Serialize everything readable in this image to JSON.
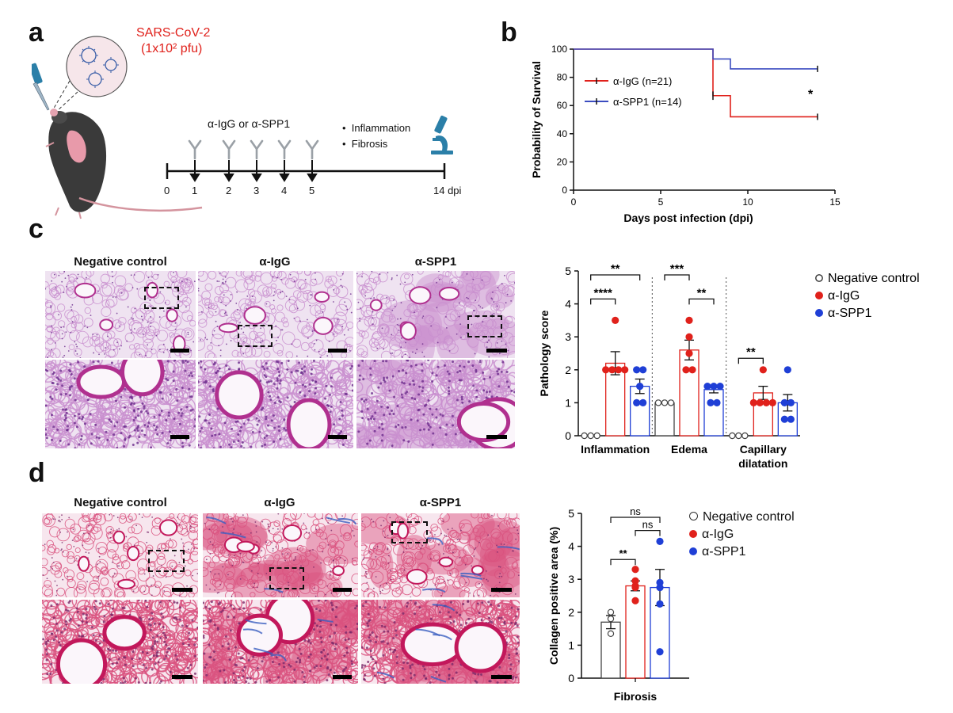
{
  "panels": {
    "a": "a",
    "b": "b",
    "c": "c",
    "d": "d"
  },
  "panel_a": {
    "virus_name": "SARS-CoV-2",
    "virus_dose": "(1x10² pfu)",
    "treatment_label": "α-IgG or α-SPP1",
    "readouts": [
      "Inflammation",
      "Fibrosis"
    ],
    "timeline_ticks": [
      "0",
      "1",
      "2",
      "3",
      "4",
      "5",
      "14 dpi"
    ],
    "colors": {
      "virus_text": "#e0211b",
      "antibody": "#9aa0a6",
      "mouse": "#3a3a3a",
      "lung": "#e89aaa",
      "microscope": "#2b7fa8"
    }
  },
  "histology": {
    "c_headers": [
      "Negative control",
      "α-IgG",
      "α-SPP1"
    ],
    "d_headers": [
      "Negative control",
      "α-IgG",
      "α-SPP1"
    ],
    "colors": {
      "he_bg": "#efe3f1",
      "he_tissue": "#c98fcf",
      "he_nuclei": "#6b2c8c",
      "mt_bg": "#f7e6ee",
      "mt_tissue": "#d9527f",
      "mt_collagen": "#3b5fc0"
    }
  },
  "chart_data": [
    {
      "id": "b",
      "type": "line",
      "subtype": "kaplan-meier",
      "xlabel": "Days post infection (dpi)",
      "ylabel": "Probability of Survival",
      "xlim": [
        0,
        15
      ],
      "ylim": [
        0,
        100
      ],
      "xticks": [
        0,
        5,
        10,
        15
      ],
      "yticks": [
        0,
        20,
        40,
        60,
        80,
        100
      ],
      "series": [
        {
          "name": "α-IgG (n=21)",
          "color": "#e0211b",
          "x": [
            0,
            8,
            8,
            9,
            9,
            14
          ],
          "y": [
            100,
            100,
            67,
            67,
            52,
            52
          ]
        },
        {
          "name": "α-SPP1 (n=14)",
          "color": "#3b4cc0",
          "x": [
            0,
            8,
            8,
            9,
            9,
            14
          ],
          "y": [
            100,
            100,
            93,
            93,
            86,
            86
          ]
        }
      ],
      "annotation": "*",
      "legend_position": "middle-left"
    },
    {
      "id": "c",
      "type": "bar",
      "ylabel": "Pathology score",
      "ylim": [
        0,
        5
      ],
      "yticks": [
        0,
        1,
        2,
        3,
        4,
        5
      ],
      "categories": [
        "Inflammation",
        "Edema",
        "Capillary dilatation"
      ],
      "series": [
        {
          "name": "Negative control",
          "color": "#444444",
          "values": [
            0,
            1,
            0
          ],
          "errors": [
            0,
            0,
            0
          ],
          "points": [
            [
              0,
              0,
              0
            ],
            [
              1,
              1,
              1
            ],
            [
              0,
              0,
              0
            ]
          ]
        },
        {
          "name": "α-IgG",
          "color": "#e0211b",
          "values": [
            2.2,
            2.6,
            1.3
          ],
          "errors": [
            0.35,
            0.3,
            0.2
          ],
          "points": [
            [
              3.5,
              2,
              2,
              2,
              2
            ],
            [
              3.5,
              3,
              2,
              2,
              2.5
            ],
            [
              2,
              1,
              1,
              1,
              1
            ]
          ]
        },
        {
          "name": "α-SPP1",
          "color": "#1f3fd6",
          "values": [
            1.5,
            1.4,
            1.0
          ],
          "errors": [
            0.22,
            0.1,
            0.25
          ],
          "points": [
            [
              2,
              2,
              1.5,
              1,
              1
            ],
            [
              1.5,
              1.5,
              1.5,
              1,
              1
            ],
            [
              2,
              1,
              1,
              0.5,
              0.5
            ]
          ]
        }
      ],
      "significance": [
        "**",
        "****",
        "***",
        "**",
        "**"
      ],
      "legend_position": "top-right"
    },
    {
      "id": "d",
      "type": "bar",
      "xlabel": "Fibrosis",
      "ylabel": "Collagen positive area (%)",
      "ylim": [
        0,
        5
      ],
      "yticks": [
        0,
        1,
        2,
        3,
        4,
        5
      ],
      "categories": [
        "Fibrosis"
      ],
      "series": [
        {
          "name": "Negative control",
          "color": "#444444",
          "values": [
            1.7
          ],
          "errors": [
            0.2
          ],
          "points": [
            [
              2.0,
              1.8,
              1.35
            ]
          ]
        },
        {
          "name": "α-IgG",
          "color": "#e0211b",
          "values": [
            2.8
          ],
          "errors": [
            0.15
          ],
          "points": [
            [
              3.3,
              2.95,
              2.8,
              2.75,
              2.35
            ]
          ]
        },
        {
          "name": "α-SPP1",
          "color": "#1f3fd6",
          "values": [
            2.75
          ],
          "errors": [
            0.55
          ],
          "points": [
            [
              4.15,
              2.9,
              2.75,
              2.25,
              0.8
            ]
          ]
        }
      ],
      "significance": [
        "ns",
        "ns",
        "**"
      ],
      "legend_position": "top-right"
    }
  ]
}
